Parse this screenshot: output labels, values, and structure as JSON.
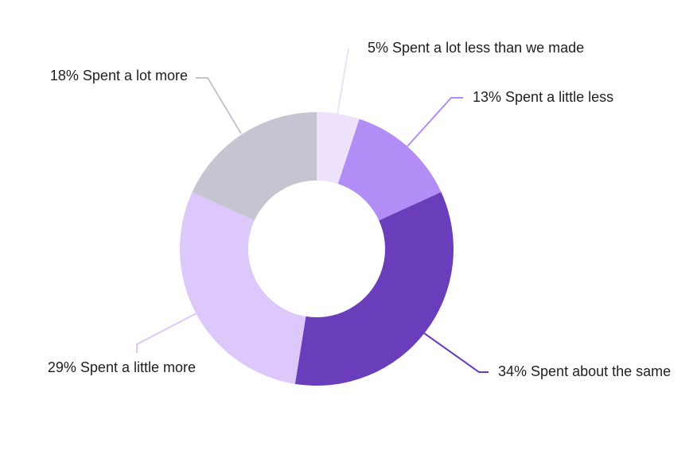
{
  "chart_data": {
    "type": "pie",
    "donut": true,
    "title": "",
    "start_angle_deg": 0,
    "direction": "clockwise",
    "slices": [
      {
        "label": "Spent a lot less than we made",
        "value": 5,
        "value_label": "5%",
        "color": "#ede1fb"
      },
      {
        "label": "Spent a little less",
        "value": 13,
        "value_label": "13%",
        "color": "#b18df5"
      },
      {
        "label": "Spent about the same",
        "value": 34,
        "value_label": "34%",
        "color": "#6a3ebb"
      },
      {
        "label": "Spent a little more",
        "value": 29,
        "value_label": "29%",
        "color": "#ddc8fb"
      },
      {
        "label": "Spent a lot more",
        "value": 18,
        "value_label": "18%",
        "color": "#c7c4d1"
      }
    ]
  }
}
